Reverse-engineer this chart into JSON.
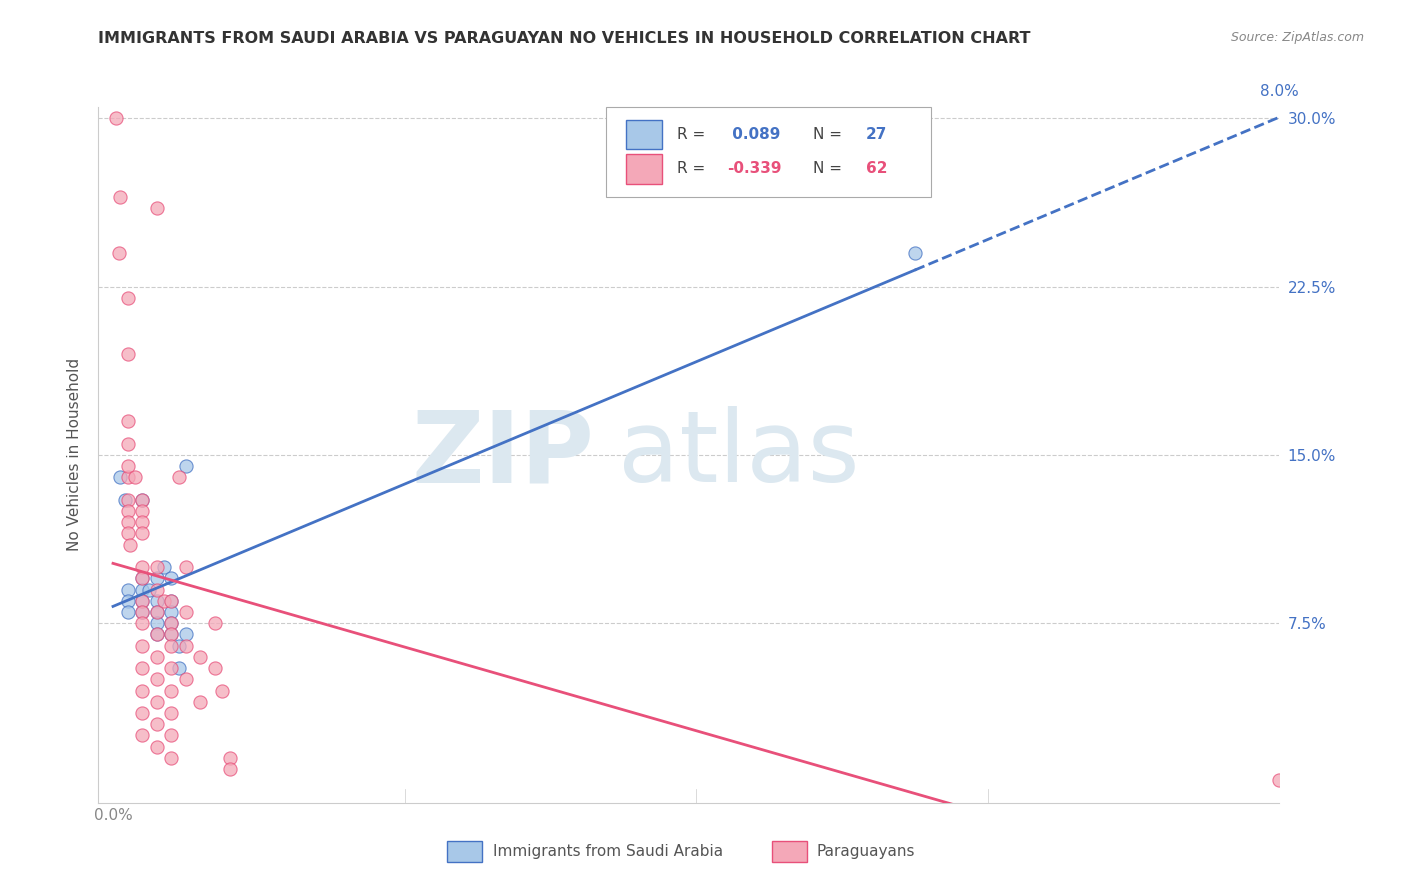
{
  "title": "IMMIGRANTS FROM SAUDI ARABIA VS PARAGUAYAN NO VEHICLES IN HOUSEHOLD CORRELATION CHART",
  "source": "Source: ZipAtlas.com",
  "xlabel_saudi": "Immigrants from Saudi Arabia",
  "xlabel_para": "Paraguayans",
  "ylabel": "No Vehicles in Household",
  "saudi_R": 0.089,
  "saudi_N": 27,
  "para_R": -0.339,
  "para_N": 62,
  "saudi_color": "#a8c8e8",
  "para_color": "#f4a8b8",
  "trend_saudi_color": "#4472c4",
  "trend_para_color": "#e8507a",
  "xlim": [
    0.0,
    0.08
  ],
  "ylim": [
    0.0,
    0.3
  ],
  "saudi_points": [
    [
      0.0005,
      0.14
    ],
    [
      0.0008,
      0.13
    ],
    [
      0.001,
      0.09
    ],
    [
      0.001,
      0.085
    ],
    [
      0.001,
      0.08
    ],
    [
      0.002,
      0.13
    ],
    [
      0.002,
      0.095
    ],
    [
      0.002,
      0.09
    ],
    [
      0.002,
      0.085
    ],
    [
      0.002,
      0.08
    ],
    [
      0.0025,
      0.09
    ],
    [
      0.003,
      0.095
    ],
    [
      0.003,
      0.085
    ],
    [
      0.003,
      0.08
    ],
    [
      0.003,
      0.075
    ],
    [
      0.003,
      0.07
    ],
    [
      0.0035,
      0.1
    ],
    [
      0.004,
      0.095
    ],
    [
      0.004,
      0.085
    ],
    [
      0.004,
      0.08
    ],
    [
      0.004,
      0.075
    ],
    [
      0.004,
      0.07
    ],
    [
      0.0045,
      0.065
    ],
    [
      0.0045,
      0.055
    ],
    [
      0.005,
      0.145
    ],
    [
      0.005,
      0.07
    ],
    [
      0.055,
      0.24
    ]
  ],
  "para_points": [
    [
      0.0002,
      0.3
    ],
    [
      0.0004,
      0.24
    ],
    [
      0.0005,
      0.265
    ],
    [
      0.001,
      0.22
    ],
    [
      0.001,
      0.195
    ],
    [
      0.001,
      0.165
    ],
    [
      0.001,
      0.155
    ],
    [
      0.001,
      0.14
    ],
    [
      0.001,
      0.13
    ],
    [
      0.001,
      0.125
    ],
    [
      0.001,
      0.12
    ],
    [
      0.001,
      0.115
    ],
    [
      0.001,
      0.145
    ],
    [
      0.0012,
      0.11
    ],
    [
      0.0015,
      0.14
    ],
    [
      0.002,
      0.13
    ],
    [
      0.002,
      0.125
    ],
    [
      0.002,
      0.12
    ],
    [
      0.002,
      0.115
    ],
    [
      0.002,
      0.1
    ],
    [
      0.002,
      0.095
    ],
    [
      0.002,
      0.085
    ],
    [
      0.002,
      0.08
    ],
    [
      0.002,
      0.075
    ],
    [
      0.002,
      0.065
    ],
    [
      0.002,
      0.055
    ],
    [
      0.002,
      0.045
    ],
    [
      0.002,
      0.035
    ],
    [
      0.002,
      0.025
    ],
    [
      0.003,
      0.26
    ],
    [
      0.003,
      0.1
    ],
    [
      0.003,
      0.09
    ],
    [
      0.003,
      0.08
    ],
    [
      0.003,
      0.07
    ],
    [
      0.003,
      0.06
    ],
    [
      0.003,
      0.05
    ],
    [
      0.003,
      0.04
    ],
    [
      0.003,
      0.03
    ],
    [
      0.003,
      0.02
    ],
    [
      0.0035,
      0.085
    ],
    [
      0.004,
      0.085
    ],
    [
      0.004,
      0.075
    ],
    [
      0.004,
      0.07
    ],
    [
      0.004,
      0.065
    ],
    [
      0.004,
      0.055
    ],
    [
      0.004,
      0.045
    ],
    [
      0.004,
      0.035
    ],
    [
      0.004,
      0.025
    ],
    [
      0.004,
      0.015
    ],
    [
      0.0045,
      0.14
    ],
    [
      0.005,
      0.1
    ],
    [
      0.005,
      0.08
    ],
    [
      0.005,
      0.065
    ],
    [
      0.005,
      0.05
    ],
    [
      0.006,
      0.06
    ],
    [
      0.006,
      0.04
    ],
    [
      0.007,
      0.075
    ],
    [
      0.007,
      0.055
    ],
    [
      0.0075,
      0.045
    ],
    [
      0.008,
      0.015
    ],
    [
      0.008,
      0.01
    ],
    [
      0.08,
      0.005
    ]
  ],
  "trend_saudi_x_solid_end": 0.055,
  "trend_saudi_x_dashed_end": 0.08
}
